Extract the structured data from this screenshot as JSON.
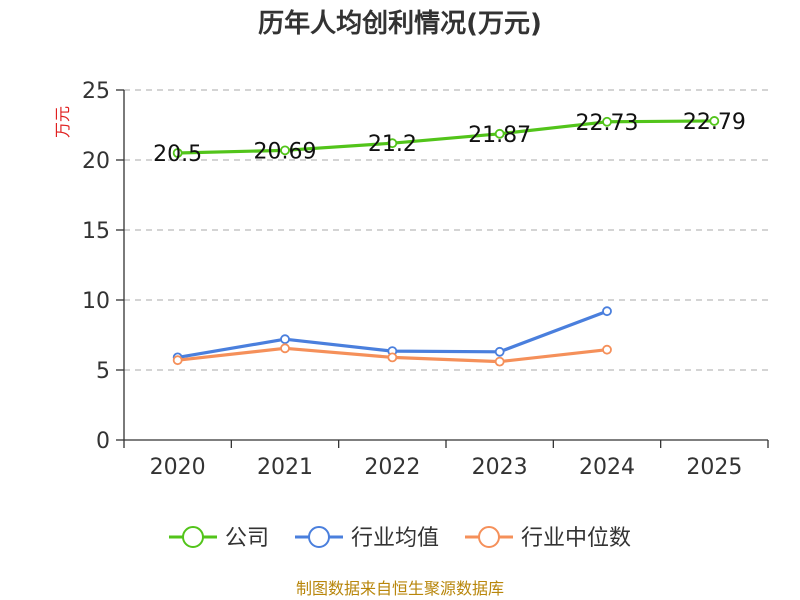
{
  "chart_data": {
    "type": "line",
    "title": "历年人均创利情况(万元)",
    "ylabel": "万元",
    "xlabel": "",
    "categories": [
      "2020",
      "2021",
      "2022",
      "2023",
      "2024",
      "2025"
    ],
    "ylim": [
      0,
      25
    ],
    "yticks": [
      0,
      5,
      10,
      15,
      20,
      25
    ],
    "grid": true,
    "legend_position": "bottom",
    "series": [
      {
        "name": "公司",
        "color": "#52c41a",
        "values": [
          20.5,
          20.69,
          21.2,
          21.87,
          22.73,
          22.79
        ],
        "labels": [
          "20.5",
          "20.69",
          "21.2",
          "21.87",
          "22.73",
          "22.79"
        ]
      },
      {
        "name": "行业均值",
        "color": "#4a7fdd",
        "values": [
          5.9,
          7.2,
          6.35,
          6.3,
          9.2,
          null
        ]
      },
      {
        "name": "行业中位数",
        "color": "#f5905a",
        "values": [
          5.7,
          6.55,
          5.9,
          5.6,
          6.45,
          null
        ]
      }
    ]
  },
  "footer": "制图数据来自恒生聚源数据库",
  "colors": {
    "unit_label": "#e02020",
    "footer": "#b8860b"
  }
}
